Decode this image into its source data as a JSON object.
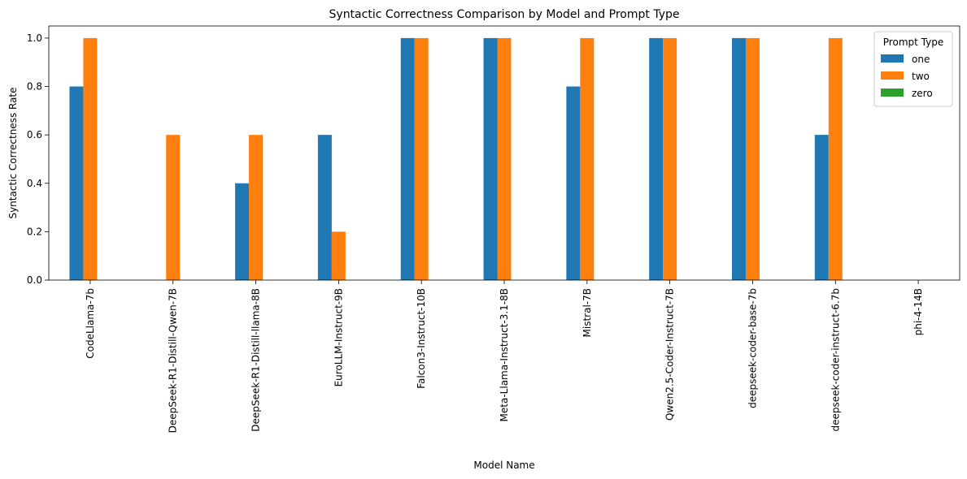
{
  "chart_data": {
    "type": "bar",
    "title": "Syntactic Correctness Comparison by Model and Prompt Type",
    "xlabel": "Model Name",
    "ylabel": "Syntactic Correctness Rate",
    "ylim": [
      0,
      1.05
    ],
    "yticks": [
      "0.0",
      "0.2",
      "0.4",
      "0.6",
      "0.8",
      "1.0"
    ],
    "grid": false,
    "legend": {
      "title": "Prompt Type",
      "placement": "top-right"
    },
    "categories": [
      "CodeLlama-7b",
      "DeepSeek-R1-Distill-Qwen-7B",
      "DeepSeek-R1-Distill-llama-8B",
      "EuroLLM-Instruct-9B",
      "Falcon3-Instruct-10B",
      "Meta-Llama-Instruct-3.1-8B",
      "Mistral-7B",
      "Qwen2.5-Coder-Instruct-7B",
      "deepseek-coder-base-7b",
      "deepseek-coder-instruct-6.7b",
      "phi-4-14B"
    ],
    "series": [
      {
        "name": "one",
        "color": "#1f77b4",
        "values": [
          0.8,
          0.0,
          0.4,
          0.6,
          1.0,
          1.0,
          0.8,
          1.0,
          1.0,
          0.6,
          0.0
        ]
      },
      {
        "name": "two",
        "color": "#ff7f0e",
        "values": [
          1.0,
          0.6,
          0.6,
          0.2,
          1.0,
          1.0,
          1.0,
          1.0,
          1.0,
          1.0,
          0.0
        ]
      },
      {
        "name": "zero",
        "color": "#2ca02c",
        "values": [
          0.0,
          0.0,
          0.0,
          0.0,
          0.0,
          0.0,
          0.0,
          0.0,
          0.0,
          0.0,
          0.0
        ]
      }
    ]
  }
}
